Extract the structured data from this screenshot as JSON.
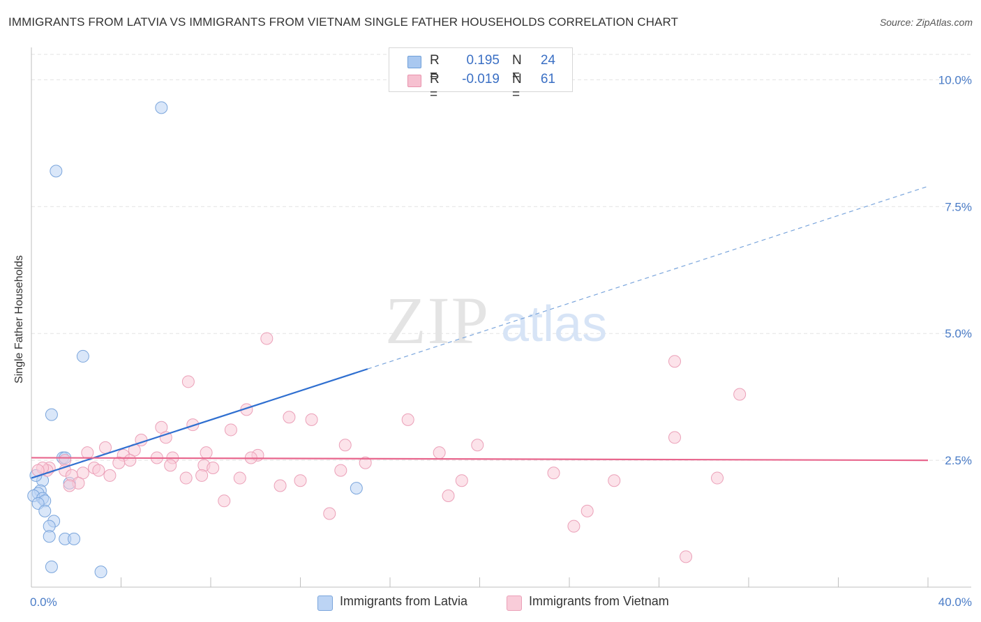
{
  "title": "IMMIGRANTS FROM LATVIA VS IMMIGRANTS FROM VIETNAM SINGLE FATHER HOUSEHOLDS CORRELATION CHART",
  "source": "Source: ZipAtlas.com",
  "watermark": {
    "zip": "ZIP",
    "atlas": "atlas"
  },
  "legend": {
    "rows": [
      {
        "r_label": "R =",
        "r_value": "0.195",
        "n_label": "N =",
        "n_value": "24",
        "color": "#a9c8f0",
        "border": "#6f9fd8"
      },
      {
        "r_label": "R =",
        "r_value": "-0.019",
        "n_label": "N =",
        "n_value": "61",
        "color": "#f6c0d0",
        "border": "#e893ad"
      }
    ]
  },
  "bottom_legend": [
    {
      "label": "Immigrants from Latvia",
      "color": "#bcd4f4",
      "border": "#7aa5dc"
    },
    {
      "label": "Immigrants from Vietnam",
      "color": "#f9ccd9",
      "border": "#eba0b8"
    }
  ],
  "chart_data": {
    "type": "scatter",
    "title": "IMMIGRANTS FROM LATVIA VS IMMIGRANTS FROM VIETNAM SINGLE FATHER HOUSEHOLDS CORRELATION CHART",
    "xlabel": "",
    "ylabel": "Single Father Households",
    "xlim": [
      0,
      40
    ],
    "ylim": [
      0,
      10.5
    ],
    "x_tick_labels": [
      {
        "value": 0,
        "label": "0.0%"
      },
      {
        "value": 40,
        "label": "40.0%"
      }
    ],
    "y_tick_labels": [
      {
        "value": 2.5,
        "label": "2.5%"
      },
      {
        "value": 5.0,
        "label": "5.0%"
      },
      {
        "value": 7.5,
        "label": "7.5%"
      },
      {
        "value": 10.0,
        "label": "10.0%"
      }
    ],
    "grid": true,
    "series": [
      {
        "name": "Immigrants from Latvia",
        "color": "#7aa5dc",
        "fill": "#bcd4f4",
        "points": [
          [
            5.8,
            9.45
          ],
          [
            1.1,
            8.2
          ],
          [
            2.3,
            4.55
          ],
          [
            0.9,
            3.4
          ],
          [
            1.4,
            2.55
          ],
          [
            1.5,
            2.55
          ],
          [
            0.5,
            2.1
          ],
          [
            1.7,
            2.05
          ],
          [
            0.2,
            2.2
          ],
          [
            14.5,
            1.95
          ],
          [
            0.4,
            1.9
          ],
          [
            0.3,
            1.85
          ],
          [
            0.1,
            1.8
          ],
          [
            0.5,
            1.75
          ],
          [
            0.6,
            1.7
          ],
          [
            0.3,
            1.65
          ],
          [
            0.6,
            1.5
          ],
          [
            1.0,
            1.3
          ],
          [
            0.8,
            1.2
          ],
          [
            0.8,
            1.0
          ],
          [
            1.5,
            0.95
          ],
          [
            1.9,
            0.95
          ],
          [
            0.9,
            0.4
          ],
          [
            3.1,
            0.3
          ]
        ],
        "trend": {
          "x0": 0,
          "y0": 2.15,
          "x1": 15,
          "y1": 4.3,
          "x_dash_end": 40,
          "y_dash_end": 7.9
        }
      },
      {
        "name": "Immigrants from Vietnam",
        "color": "#eba0b8",
        "fill": "#f9ccd9",
        "points": [
          [
            10.5,
            4.9
          ],
          [
            28.7,
            4.45
          ],
          [
            7.0,
            4.05
          ],
          [
            31.6,
            3.8
          ],
          [
            9.6,
            3.5
          ],
          [
            11.5,
            3.35
          ],
          [
            12.5,
            3.3
          ],
          [
            16.8,
            3.3
          ],
          [
            5.8,
            3.15
          ],
          [
            7.2,
            3.2
          ],
          [
            8.9,
            3.1
          ],
          [
            28.7,
            2.95
          ],
          [
            6.0,
            2.95
          ],
          [
            4.9,
            2.9
          ],
          [
            14.0,
            2.8
          ],
          [
            19.9,
            2.8
          ],
          [
            3.3,
            2.75
          ],
          [
            4.6,
            2.7
          ],
          [
            2.5,
            2.65
          ],
          [
            7.8,
            2.65
          ],
          [
            18.2,
            2.65
          ],
          [
            10.1,
            2.6
          ],
          [
            4.1,
            2.6
          ],
          [
            5.6,
            2.55
          ],
          [
            6.3,
            2.55
          ],
          [
            9.8,
            2.55
          ],
          [
            4.4,
            2.5
          ],
          [
            1.5,
            2.5
          ],
          [
            14.9,
            2.45
          ],
          [
            3.9,
            2.45
          ],
          [
            6.2,
            2.4
          ],
          [
            7.7,
            2.4
          ],
          [
            0.8,
            2.35
          ],
          [
            2.8,
            2.35
          ],
          [
            0.7,
            2.3
          ],
          [
            3.0,
            2.3
          ],
          [
            8.1,
            2.35
          ],
          [
            1.5,
            2.3
          ],
          [
            13.8,
            2.3
          ],
          [
            23.3,
            2.25
          ],
          [
            2.3,
            2.25
          ],
          [
            1.8,
            2.2
          ],
          [
            3.5,
            2.2
          ],
          [
            6.9,
            2.15
          ],
          [
            9.3,
            2.15
          ],
          [
            7.6,
            2.2
          ],
          [
            30.6,
            2.15
          ],
          [
            12.0,
            2.1
          ],
          [
            19.2,
            2.1
          ],
          [
            26.0,
            2.1
          ],
          [
            2.1,
            2.05
          ],
          [
            1.7,
            2.0
          ],
          [
            11.1,
            2.0
          ],
          [
            18.6,
            1.8
          ],
          [
            8.6,
            1.7
          ],
          [
            0.5,
            2.35
          ],
          [
            0.3,
            2.3
          ],
          [
            24.8,
            1.5
          ],
          [
            13.3,
            1.45
          ],
          [
            24.2,
            1.2
          ],
          [
            29.2,
            0.6
          ]
        ],
        "trend": {
          "x0": 0,
          "y0": 2.55,
          "x1": 40,
          "y1": 2.5
        }
      }
    ]
  }
}
